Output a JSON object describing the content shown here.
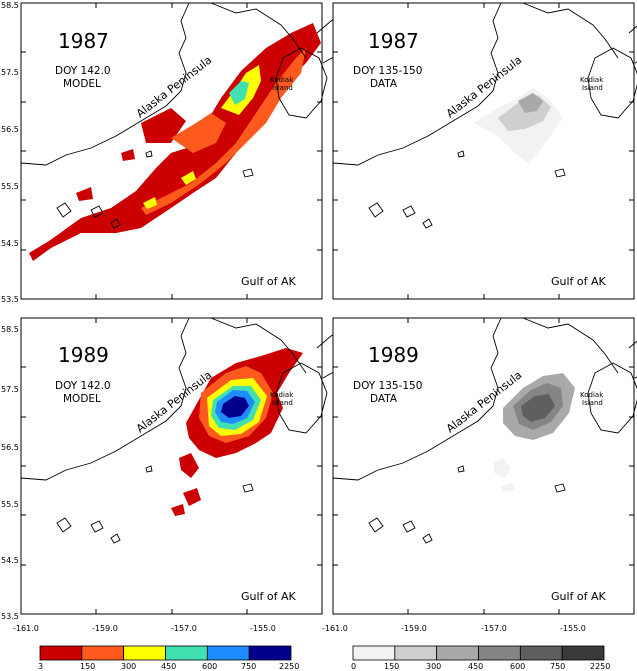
{
  "panels": [
    {
      "year": "1987",
      "doy": "DOY 142.0",
      "kind": "MODEL",
      "scale": "color",
      "regime": "1987"
    },
    {
      "year": "1987",
      "doy": "DOY 135-150",
      "kind": "DATA",
      "scale": "gray",
      "regime": "1987"
    },
    {
      "year": "1989",
      "doy": "DOY 142.0",
      "kind": "MODEL",
      "scale": "color",
      "regime": "1989"
    },
    {
      "year": "1989",
      "doy": "DOY 135-150",
      "kind": "DATA",
      "scale": "gray",
      "regime": "1989"
    }
  ],
  "labels": {
    "peninsula": "Alaska Peninsula",
    "island_line1": "Kodiak",
    "island_line2": "Island",
    "gulf": "Gulf of AK"
  },
  "axes": {
    "x_ticks": [
      "-161.0",
      "-159.0",
      "-157.0",
      "-155.0"
    ],
    "y_ticks": [
      "58.5",
      "57.5",
      "56.5",
      "55.5",
      "54.5",
      "53.5"
    ]
  },
  "colorbars": {
    "color": {
      "ticks": [
        "3",
        "150",
        "300",
        "450",
        "600",
        "750",
        "2250"
      ],
      "colors": [
        "#cc0000",
        "#ff5a1e",
        "#ffff00",
        "#40e0b0",
        "#1e8cff",
        "#00008c"
      ]
    },
    "gray": {
      "ticks": [
        "0",
        "150",
        "300",
        "450",
        "600",
        "750",
        "2250"
      ],
      "colors": [
        "#f2f2f2",
        "#cfcfcf",
        "#a9a9a9",
        "#858585",
        "#5f5f5f",
        "#3a3a3a"
      ]
    }
  }
}
